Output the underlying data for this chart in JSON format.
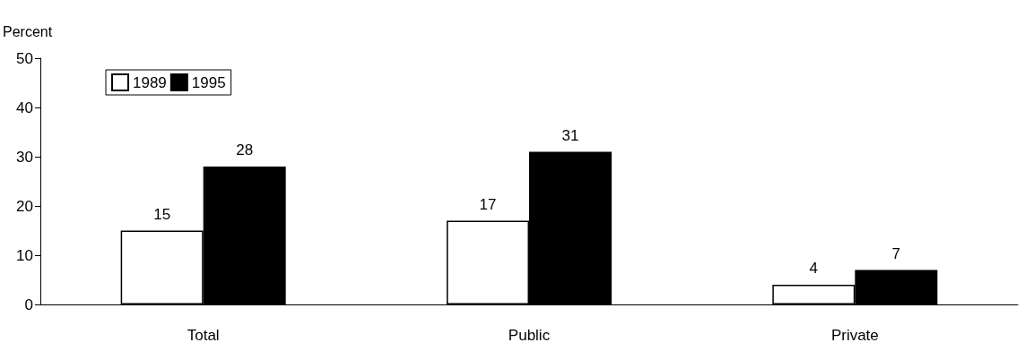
{
  "chart_data": {
    "type": "bar",
    "ylabel": "Percent",
    "categories": [
      "Total",
      "Public",
      "Private"
    ],
    "series": [
      {
        "name": "1989",
        "color": "#ffffff",
        "values": [
          15,
          17,
          4
        ]
      },
      {
        "name": "1995",
        "color": "#000000",
        "values": [
          28,
          31,
          7
        ]
      }
    ],
    "ylim": [
      0,
      50
    ],
    "yticks": [
      0,
      10,
      20,
      30,
      40,
      50
    ],
    "grid": false,
    "legend": "top left",
    "data_labels": true
  }
}
